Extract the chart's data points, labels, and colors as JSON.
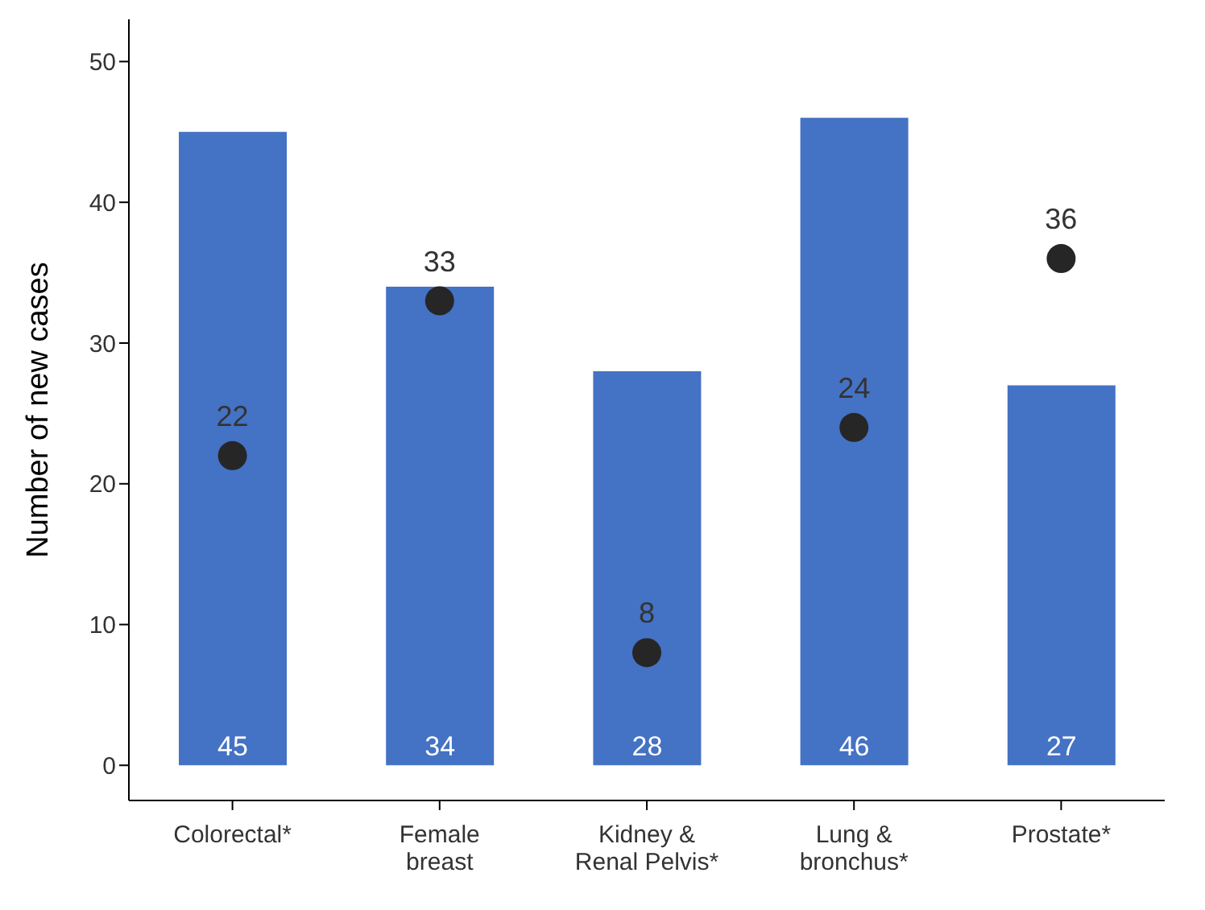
{
  "chart_data": {
    "type": "bar",
    "ylabel": "Number of new cases",
    "categories": [
      "Colorectal*",
      "Female\nbreast",
      "Kidney &\nRenal Pelvis*",
      "Lung &\nbronchus*",
      "Prostate*"
    ],
    "series": [
      {
        "color": "#4472c4",
        "values": [
          45,
          34,
          28,
          46,
          27
        ]
      },
      {
        "type": "scatter",
        "color": "#262626",
        "values": [
          22,
          33,
          8,
          24,
          36
        ]
      }
    ],
    "ylim": [
      -2.5,
      53
    ],
    "yticks": [
      0,
      10,
      20,
      30,
      40,
      50
    ],
    "marker": "circle",
    "data_labels": true
  }
}
